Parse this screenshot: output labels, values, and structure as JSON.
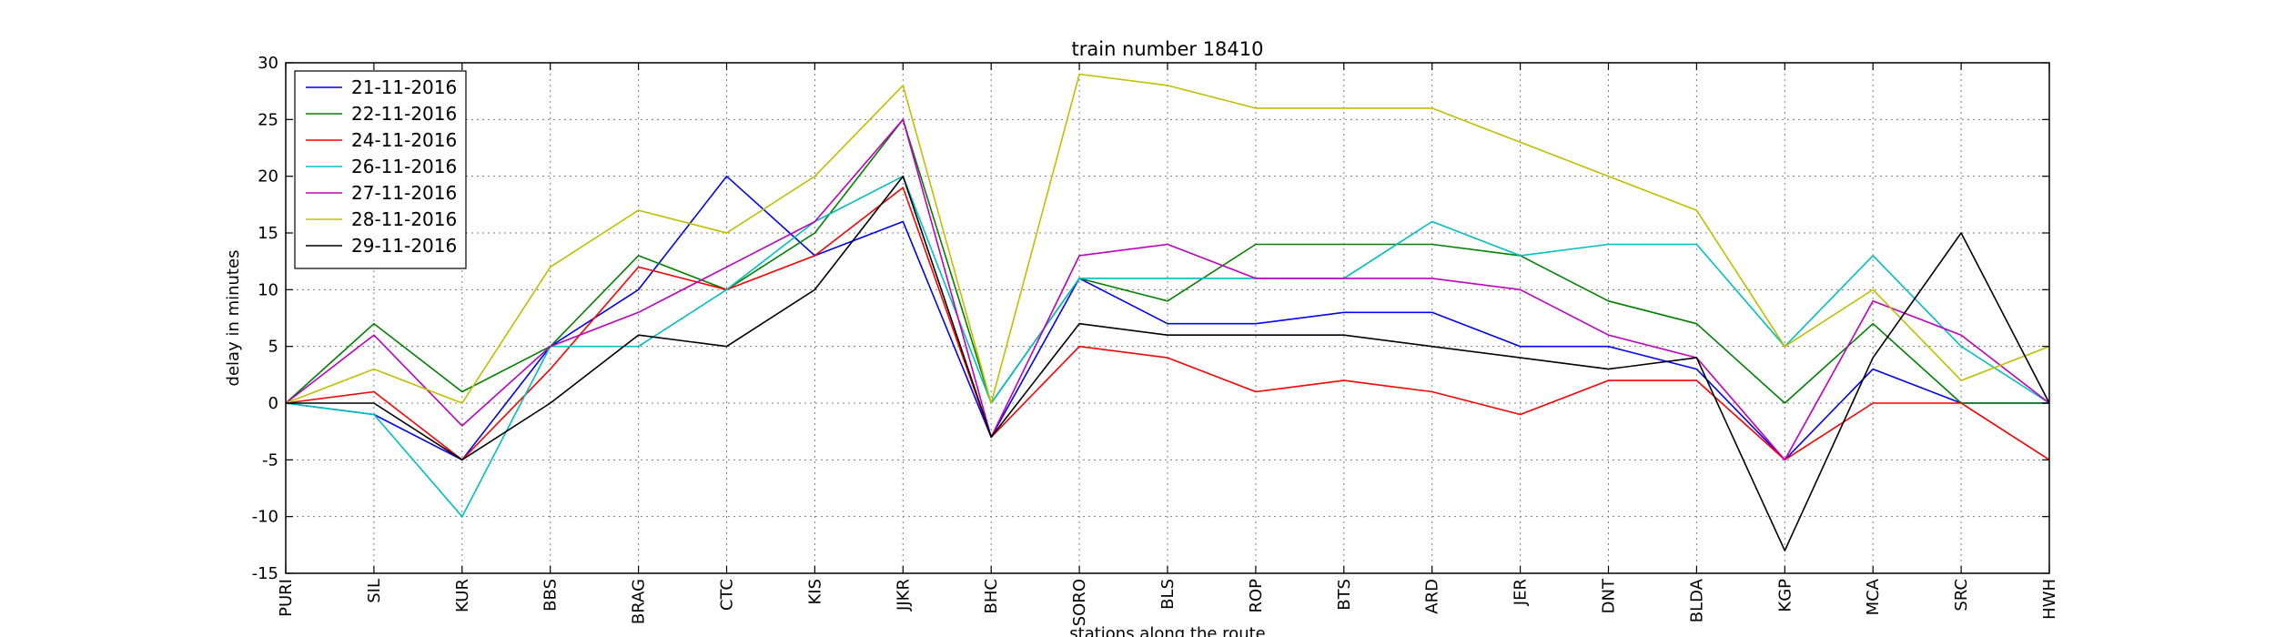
{
  "chart_data": {
    "type": "line",
    "title": "train number 18410",
    "xlabel": "stations along the route",
    "ylabel": "delay in minutes",
    "ylim": [
      -15,
      30
    ],
    "yticks": [
      -15,
      -10,
      -5,
      0,
      5,
      10,
      15,
      20,
      25,
      30
    ],
    "grid": true,
    "legend_position": "top-left",
    "categories": [
      "PURI",
      "SIL",
      "KUR",
      "BBS",
      "BRAG",
      "CTC",
      "KIS",
      "JJKR",
      "BHC",
      "SORO",
      "BLS",
      "ROP",
      "BTS",
      "ARD",
      "JER",
      "DNT",
      "BLDA",
      "KGP",
      "MCA",
      "SRC",
      "HWH"
    ],
    "series": [
      {
        "name": "21-11-2016",
        "color": "#0000ff",
        "values": [
          0,
          -1,
          -5,
          5,
          10,
          20,
          13,
          16,
          -3,
          11,
          7,
          7,
          8,
          8,
          5,
          5,
          3,
          -5,
          3,
          0,
          0
        ]
      },
      {
        "name": "22-11-2016",
        "color": "#008000",
        "values": [
          0,
          7,
          1,
          5,
          13,
          10,
          15,
          25,
          0,
          11,
          9,
          14,
          14,
          14,
          13,
          9,
          7,
          0,
          7,
          0,
          0
        ]
      },
      {
        "name": "24-11-2016",
        "color": "#ff0000",
        "values": [
          0,
          1,
          -5,
          3,
          12,
          10,
          13,
          19,
          -3,
          5,
          4,
          1,
          2,
          1,
          -1,
          2,
          2,
          -5,
          0,
          0,
          -5
        ]
      },
      {
        "name": "26-11-2016",
        "color": "#00bfbf",
        "values": [
          0,
          -1,
          -10,
          5,
          5,
          10,
          16,
          20,
          0,
          11,
          11,
          11,
          11,
          16,
          13,
          14,
          14,
          5,
          13,
          5,
          0
        ]
      },
      {
        "name": "27-11-2016",
        "color": "#bf00bf",
        "values": [
          0,
          6,
          -2,
          5,
          8,
          12,
          16,
          25,
          -3,
          13,
          14,
          11,
          11,
          11,
          10,
          6,
          4,
          -5,
          9,
          6,
          0
        ]
      },
      {
        "name": "28-11-2016",
        "color": "#bfbf00",
        "values": [
          0,
          3,
          0,
          12,
          17,
          15,
          20,
          28,
          0,
          29,
          28,
          26,
          26,
          26,
          23,
          20,
          17,
          5,
          10,
          2,
          5
        ]
      },
      {
        "name": "29-11-2016",
        "color": "#000000",
        "values": [
          0,
          0,
          -5,
          0,
          6,
          5,
          10,
          20,
          -3,
          7,
          6,
          6,
          6,
          5,
          4,
          3,
          4,
          -13,
          4,
          15,
          0
        ]
      }
    ]
  }
}
